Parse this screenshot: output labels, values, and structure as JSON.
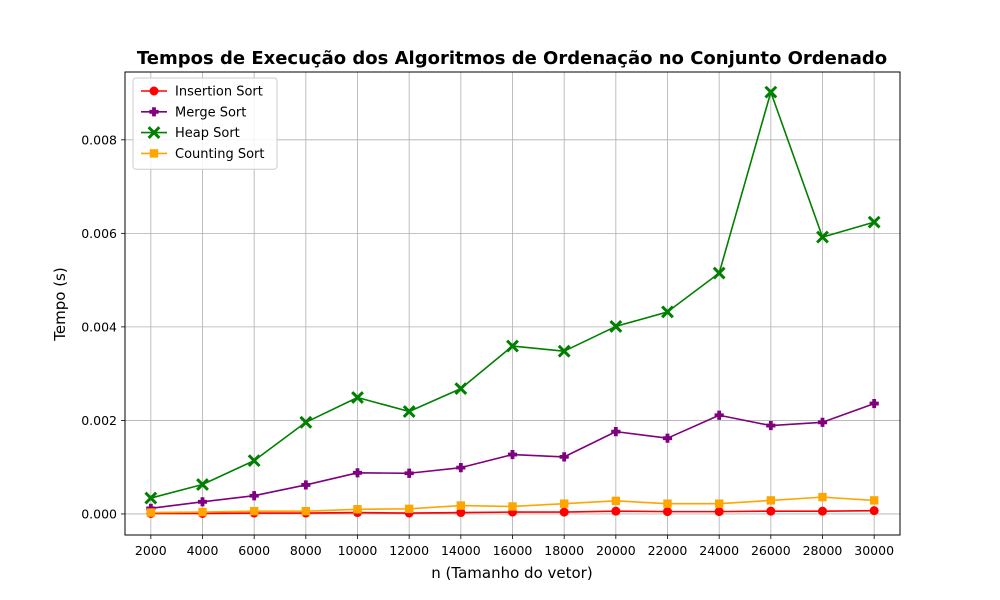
{
  "chart_data": {
    "type": "line",
    "title": "Tempos de Execução dos Algoritmos de Ordenação no Conjunto Ordenado",
    "xlabel": "n (Tamanho do vetor)",
    "ylabel": "Tempo (s)",
    "x": [
      2000,
      4000,
      6000,
      8000,
      10000,
      12000,
      14000,
      16000,
      18000,
      20000,
      22000,
      24000,
      26000,
      28000,
      30000
    ],
    "x_tick_labels": [
      "2000",
      "4000",
      "6000",
      "8000",
      "10000",
      "12000",
      "14000",
      "16000",
      "18000",
      "20000",
      "22000",
      "24000",
      "26000",
      "28000",
      "30000"
    ],
    "y_ticks": [
      0.0,
      0.002,
      0.004,
      0.006,
      0.008
    ],
    "y_tick_labels": [
      "0.000",
      "0.002",
      "0.004",
      "0.006",
      "0.008"
    ],
    "xlim": [
      1000,
      31000
    ],
    "ylim": [
      -0.00045,
      0.00945
    ],
    "grid": true,
    "legend_position": "top-left",
    "series": [
      {
        "name": "Insertion Sort",
        "color": "#ff0000",
        "marker": "circle",
        "values": [
          1e-05,
          1e-05,
          2e-05,
          2e-05,
          3e-05,
          2e-05,
          3e-05,
          4e-05,
          4e-05,
          6e-05,
          5e-05,
          5e-05,
          6e-05,
          6e-05,
          7e-05
        ]
      },
      {
        "name": "Merge Sort",
        "color": "#800080",
        "marker": "plus",
        "values": [
          0.00012,
          0.00026,
          0.00039,
          0.00062,
          0.00088,
          0.00087,
          0.00099,
          0.00127,
          0.00122,
          0.00176,
          0.00162,
          0.00211,
          0.00189,
          0.00196,
          0.00236
        ]
      },
      {
        "name": "Heap Sort",
        "color": "#008000",
        "marker": "x",
        "values": [
          0.00034,
          0.00063,
          0.00114,
          0.00196,
          0.00249,
          0.00219,
          0.00268,
          0.00359,
          0.00348,
          0.00401,
          0.00432,
          0.00515,
          0.00902,
          0.00592,
          0.00624
        ]
      },
      {
        "name": "Counting Sort",
        "color": "#ffa500",
        "marker": "square",
        "values": [
          3e-05,
          4e-05,
          6e-05,
          6e-05,
          0.0001,
          0.00011,
          0.00018,
          0.00016,
          0.00022,
          0.00028,
          0.00022,
          0.00022,
          0.00029,
          0.00036,
          0.00029
        ]
      }
    ]
  }
}
